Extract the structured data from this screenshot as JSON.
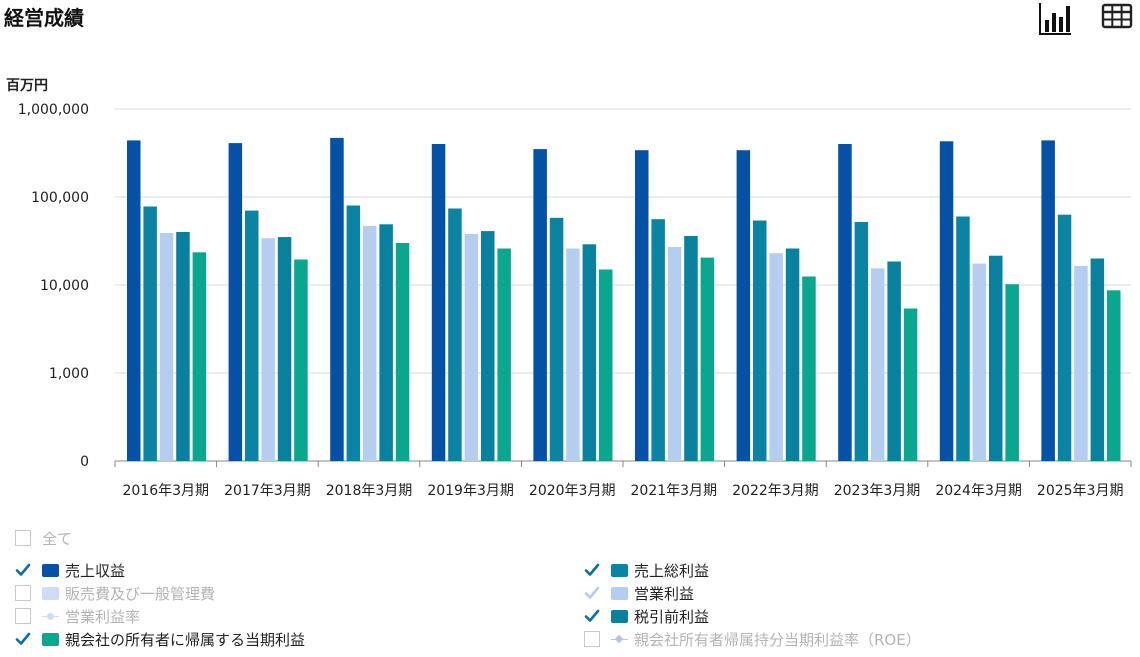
{
  "page": {
    "title": "経営成績"
  },
  "toolbar": {
    "bar_icon": "bar-chart-icon",
    "table_icon": "table-grid-icon"
  },
  "colors": {
    "revenue": "#0451a6",
    "gross_profit": "#0a84a2",
    "sga": "#cdddf6",
    "operating_profit": "#b5cdef",
    "pretax_profit": "#08819f",
    "net_profit": "#0aa78f",
    "roe": "#b5c3ea",
    "check": "#0b6ea6"
  },
  "chart_data": {
    "type": "bar",
    "ylabel": "百万円",
    "yscale": "log",
    "yticks": [
      "1,000,000",
      "100,000",
      "10,000",
      "1,000",
      "0"
    ],
    "categories": [
      "2016年3月期",
      "2017年3月期",
      "2018年3月期",
      "2019年3月期",
      "2020年3月期",
      "2021年3月期",
      "2022年3月期",
      "2023年3月期",
      "2024年3月期",
      "2025年3月期"
    ],
    "series": [
      {
        "name": "売上収益",
        "values": [
          440000,
          410000,
          470000,
          400000,
          350000,
          340000,
          340000,
          400000,
          430000,
          440000
        ]
      },
      {
        "name": "売上総利益",
        "values": [
          78000,
          70000,
          80000,
          74000,
          58000,
          56000,
          54000,
          52000,
          60000,
          63000
        ]
      },
      {
        "name": "営業利益",
        "values": [
          39000,
          34000,
          47000,
          38000,
          26000,
          27000,
          23000,
          15500,
          17500,
          16500
        ]
      },
      {
        "name": "税引前利益",
        "values": [
          40000,
          35000,
          49000,
          41000,
          29000,
          36000,
          26000,
          18500,
          21500,
          20000
        ]
      },
      {
        "name": "親会社の所有者に帰属する当期利益",
        "values": [
          23500,
          19500,
          30000,
          26000,
          15000,
          20500,
          12500,
          5400,
          10200,
          8700
        ]
      }
    ]
  },
  "legend": {
    "all": "全て",
    "items": [
      {
        "label": "売上収益",
        "checked": true,
        "color": "#0451a6",
        "marker": "box"
      },
      {
        "label": "売上総利益",
        "checked": true,
        "color": "#0a84a2",
        "marker": "box"
      },
      {
        "label": "販売費及び一般管理費",
        "checked": false,
        "color": "#cdddf6",
        "marker": "box"
      },
      {
        "label": "営業利益",
        "checked": true,
        "color": "#b5cdef",
        "marker": "box"
      },
      {
        "label": "営業利益率",
        "checked": false,
        "color": "#cdddf6",
        "marker": "line"
      },
      {
        "label": "税引前利益",
        "checked": true,
        "color": "#08819f",
        "marker": "box"
      },
      {
        "label": "親会社の所有者に帰属する当期利益",
        "checked": true,
        "color": "#0aa78f",
        "marker": "box"
      },
      {
        "label": "親会社所有者帰属持分当期利益率（ROE）",
        "checked": false,
        "color": "#b5c3ea",
        "marker": "line"
      }
    ]
  }
}
